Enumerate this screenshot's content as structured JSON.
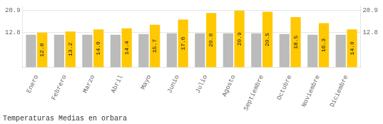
{
  "chart_data": {
    "type": "bar",
    "title": "Temperaturas Medias en orbara",
    "categories": [
      "Enero",
      "Febrero",
      "Marzo",
      "Abril",
      "Mayo",
      "Junio",
      "Julio",
      "Agosto",
      "Septiembre",
      "Octubre",
      "Noviembre",
      "Diciembre"
    ],
    "series": [
      {
        "color": "#BBBBBB",
        "values": [
          12.0,
          12.0,
          12.0,
          12.0,
          12.3,
          12.5,
          12.5,
          12.5,
          12.5,
          12.3,
          12.0,
          12.0
        ]
      },
      {
        "color": "#FFC800",
        "values": [
          12.8,
          13.2,
          14.0,
          14.4,
          15.7,
          17.6,
          20.0,
          20.9,
          20.5,
          18.5,
          16.3,
          14.0
        ],
        "data_labels": true,
        "value_labels": [
          "12.8",
          "13.2",
          "14.0",
          "14.4",
          "15.7",
          "17.6",
          "20.0",
          "20.9",
          "20.5",
          "18.5",
          "16.3",
          "14.0"
        ]
      }
    ],
    "ylim": [
      0,
      22.6
    ],
    "yticks": [
      12.8,
      20.9
    ],
    "y2lim": [
      0,
      22.6
    ],
    "y2ticks": [
      12.8,
      20.9
    ],
    "grid": true
  }
}
